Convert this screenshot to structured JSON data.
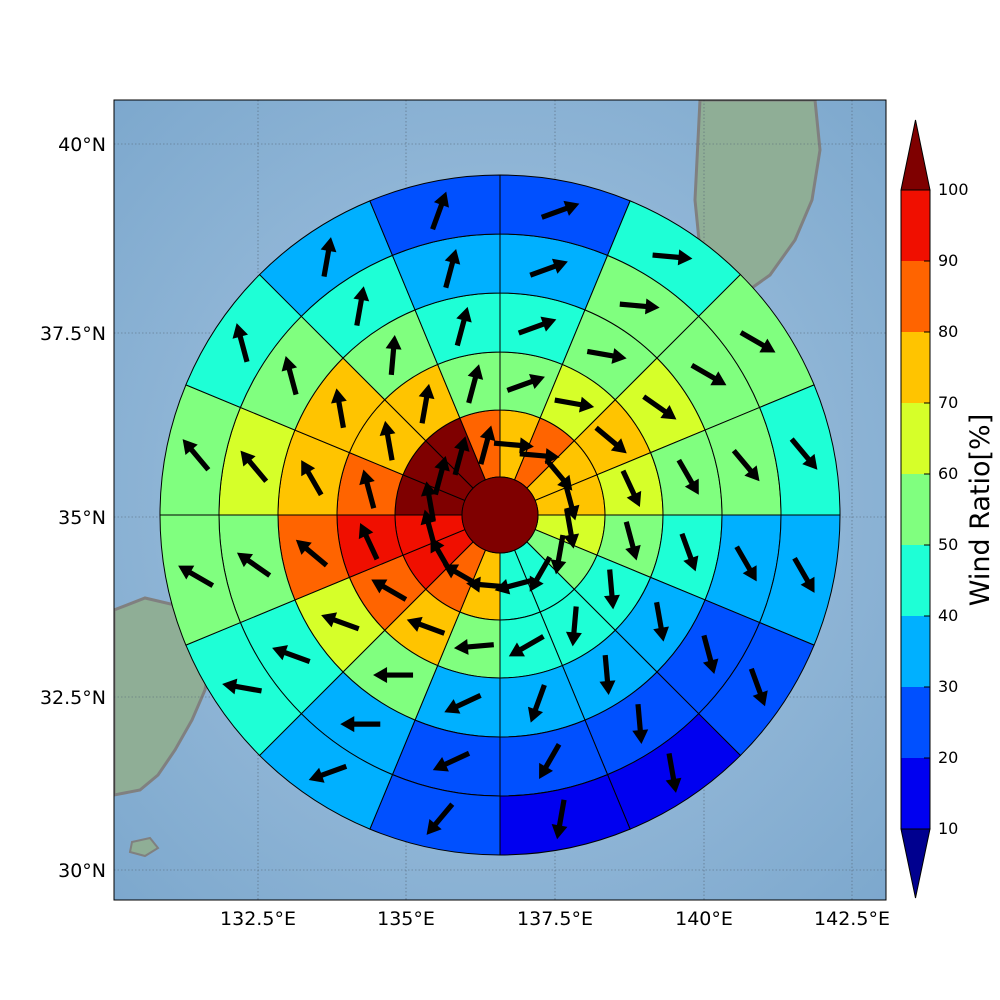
{
  "map": {
    "lat_ticks": [
      "40°N",
      "37.5°N",
      "35°N",
      "32.5°N",
      "30°N"
    ],
    "lon_ticks": [
      "132.5°E",
      "135°E",
      "137.5°E",
      "140°E",
      "142.5°E"
    ],
    "gridlines": true,
    "basemap": "shaded-relief",
    "coastline_color": "#808080"
  },
  "colorbar": {
    "label": "Wind Ratio[%]",
    "ticks": [
      "10",
      "20",
      "30",
      "40",
      "50",
      "60",
      "70",
      "80",
      "90",
      "100"
    ],
    "bins": [
      "#00008f",
      "#0000f0",
      "#0050ff",
      "#00b0ff",
      "#1effd6",
      "#80ff7f",
      "#d6ff29",
      "#ffc400",
      "#ff6400",
      "#f00f00",
      "#7f0000"
    ],
    "extend": "both"
  },
  "chart_data": {
    "type": "heatmap",
    "geometry": "polar-grid",
    "value_units": "percent",
    "center_value": 100,
    "sectors_per_ring": 16,
    "sector_order": "clockwise from north, first sector north-northeast",
    "rings": [
      {
        "ring": 1,
        "values": [
          75,
          80,
          75,
          75,
          65,
          55,
          45,
          45,
          75,
          85,
          95,
          95,
          100,
          100,
          100,
          85
        ],
        "arrow_dir_deg": [
          95,
          95,
          140,
          165,
          170,
          190,
          210,
          255,
          275,
          300,
          330,
          345,
          350,
          15,
          15,
          15
        ]
      },
      {
        "ring": 2,
        "values": [
          55,
          65,
          75,
          65,
          55,
          45,
          45,
          45,
          55,
          75,
          85,
          95,
          85,
          75,
          75,
          55
        ],
        "arrow_dir_deg": [
          70,
          100,
          130,
          155,
          165,
          175,
          185,
          240,
          265,
          290,
          300,
          335,
          345,
          350,
          10,
          15
        ]
      },
      {
        "ring": 3,
        "values": [
          45,
          55,
          65,
          55,
          45,
          35,
          35,
          35,
          35,
          55,
          65,
          85,
          75,
          75,
          55,
          45
        ],
        "arrow_dir_deg": [
          70,
          100,
          125,
          150,
          160,
          170,
          175,
          200,
          245,
          270,
          290,
          310,
          330,
          350,
          5,
          15
        ]
      },
      {
        "ring": 4,
        "values": [
          35,
          55,
          55,
          55,
          35,
          25,
          25,
          25,
          25,
          35,
          45,
          55,
          65,
          55,
          45,
          35
        ],
        "arrow_dir_deg": [
          70,
          95,
          120,
          140,
          150,
          165,
          175,
          210,
          245,
          270,
          290,
          305,
          320,
          345,
          10,
          15
        ]
      },
      {
        "ring": 5,
        "values": [
          25,
          45,
          55,
          45,
          35,
          25,
          15,
          15,
          25,
          35,
          45,
          55,
          55,
          45,
          35,
          25
        ],
        "arrow_dir_deg": [
          70,
          95,
          120,
          140,
          150,
          160,
          170,
          190,
          220,
          250,
          280,
          300,
          320,
          345,
          10,
          20
        ]
      }
    ]
  }
}
